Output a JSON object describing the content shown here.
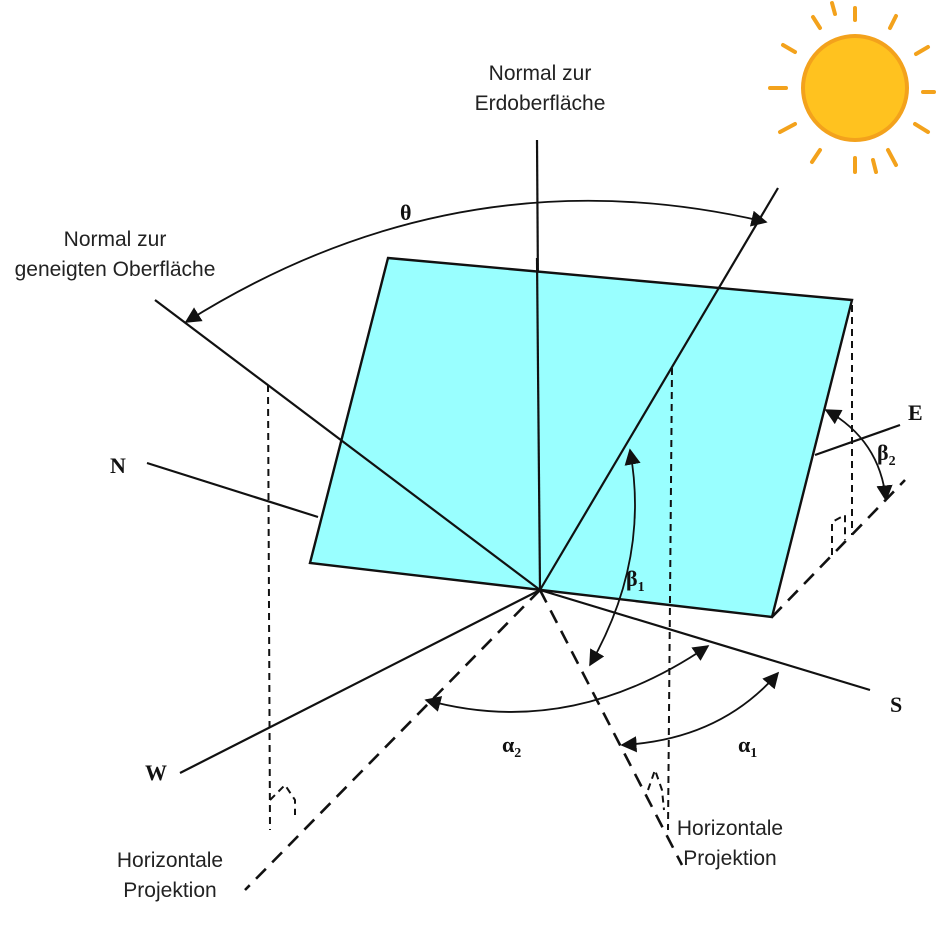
{
  "labels": {
    "earth_normal": [
      "Normal zur",
      "Erdoberfläche"
    ],
    "surface_normal": [
      "Normal zur",
      "geneigten Oberfläche"
    ],
    "theta": "θ",
    "north": "N",
    "east": "E",
    "south": "S",
    "west": "W",
    "beta1": {
      "symbol": "β",
      "subscript": "1"
    },
    "beta2": {
      "symbol": "β",
      "subscript": "2"
    },
    "alpha1": {
      "symbol": "α",
      "subscript": "1"
    },
    "alpha2": {
      "symbol": "α",
      "subscript": "2"
    },
    "projection_left": [
      "Horizontale",
      "Projektion"
    ],
    "projection_right": [
      "Horizontale",
      "Projektion"
    ]
  }
}
